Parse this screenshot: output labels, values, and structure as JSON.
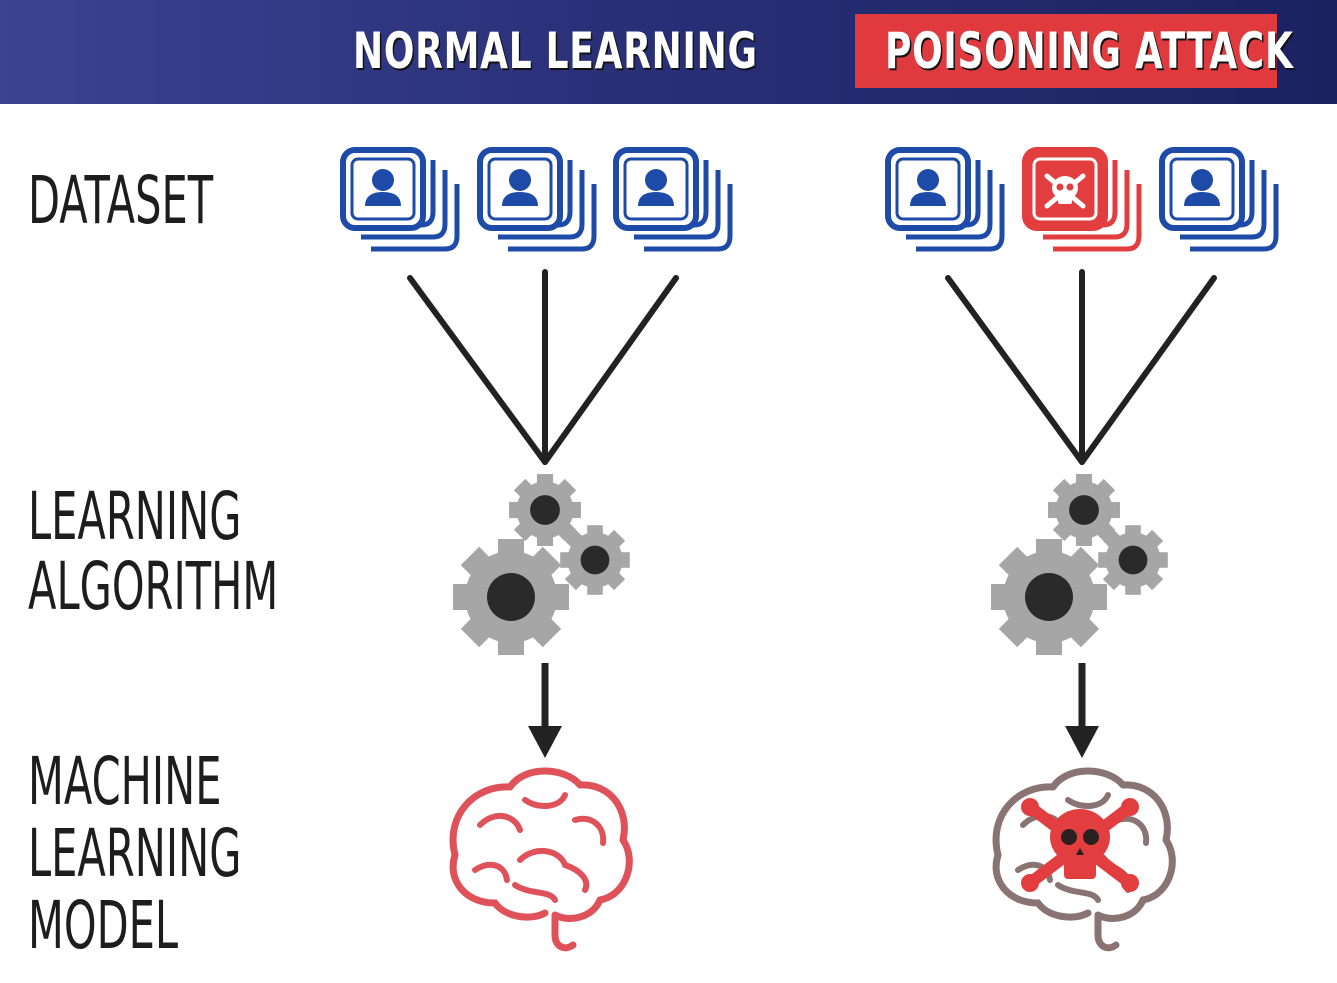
{
  "header": {
    "left_title": "NORMAL LEARNING",
    "right_title": "POISONING ATTACK"
  },
  "rows": {
    "dataset": "DATASET",
    "algorithm": "LEARNING ALGORITHM",
    "model": "MACHINE LEARNING MODEL"
  },
  "colors": {
    "banner": "#2a3078",
    "attack_red": "#e03a3e",
    "data_blue": "#1e4aa8",
    "poison_red": "#e23d3f",
    "gear_gray": "#a6a6a6",
    "gear_hub": "#2a2a2a",
    "brain_normal": "#e0525a",
    "brain_outline_poisoned": "#8a7373",
    "line": "#222222"
  },
  "columns": [
    {
      "name": "normal",
      "dataset_cards": [
        "user-icon",
        "user-icon",
        "user-icon"
      ],
      "model_icon": "brain-icon"
    },
    {
      "name": "poisoned",
      "dataset_cards": [
        "user-icon",
        "skull-icon",
        "user-icon"
      ],
      "model_icon": "poisoned-brain-icon"
    }
  ]
}
